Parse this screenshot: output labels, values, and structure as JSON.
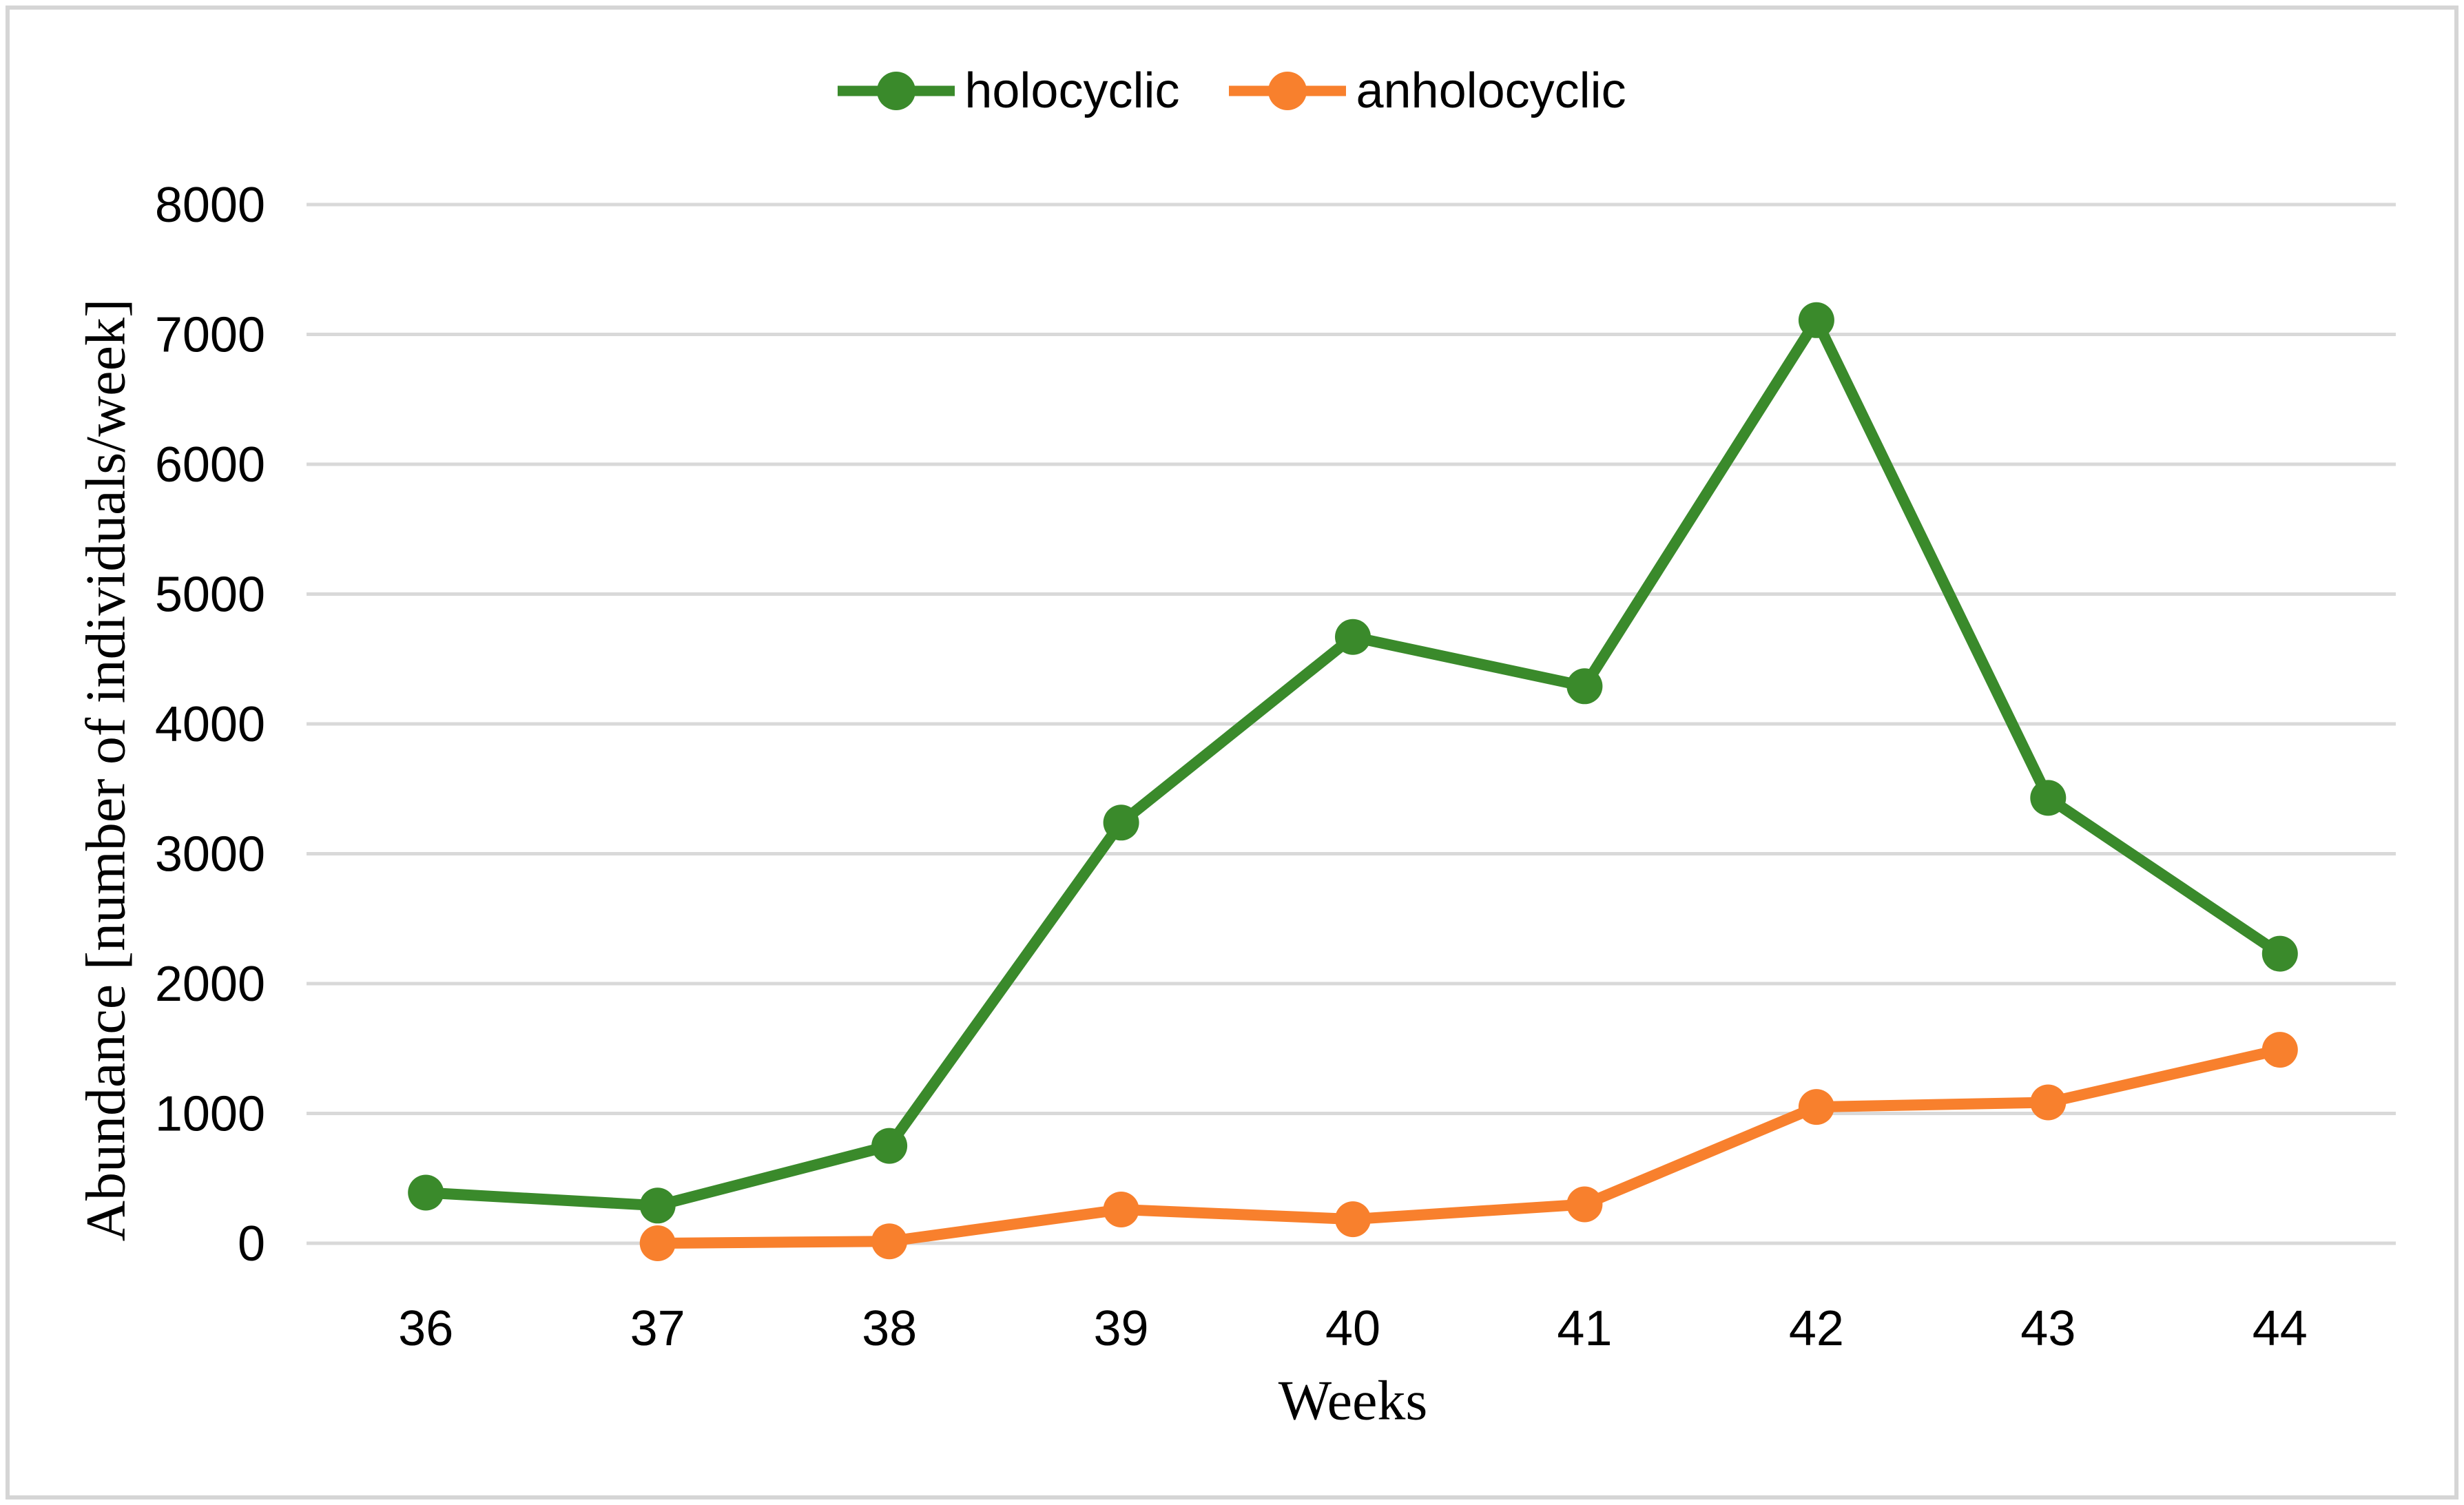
{
  "figure": {
    "background": "#FFFFFF",
    "border_color": "#D5D5D5"
  },
  "chart_data": {
    "type": "line",
    "categories": [
      "36",
      "37",
      "38",
      "39",
      "40",
      "41",
      "42",
      "43",
      "44"
    ],
    "series": [
      {
        "name": "holocyclic",
        "color": "#3A8A2B",
        "values": [
          390,
          290,
          750,
          3240,
          4670,
          4290,
          7110,
          3430,
          2230
        ]
      },
      {
        "name": "anholocyclic",
        "color": "#F8802D",
        "values": [
          null,
          0,
          15,
          260,
          185,
          300,
          1050,
          1085,
          1490
        ]
      }
    ],
    "xlabel": "Weeks",
    "ylabel": "Abundance [number of individuals/week]",
    "ylim": [
      0,
      8000
    ],
    "yticks": [
      0,
      1000,
      2000,
      3000,
      4000,
      5000,
      6000,
      7000,
      8000
    ],
    "grid": "horizontal",
    "gridline_color": "#D9D9D9",
    "legend_position": "top-center",
    "marker": "circle"
  }
}
